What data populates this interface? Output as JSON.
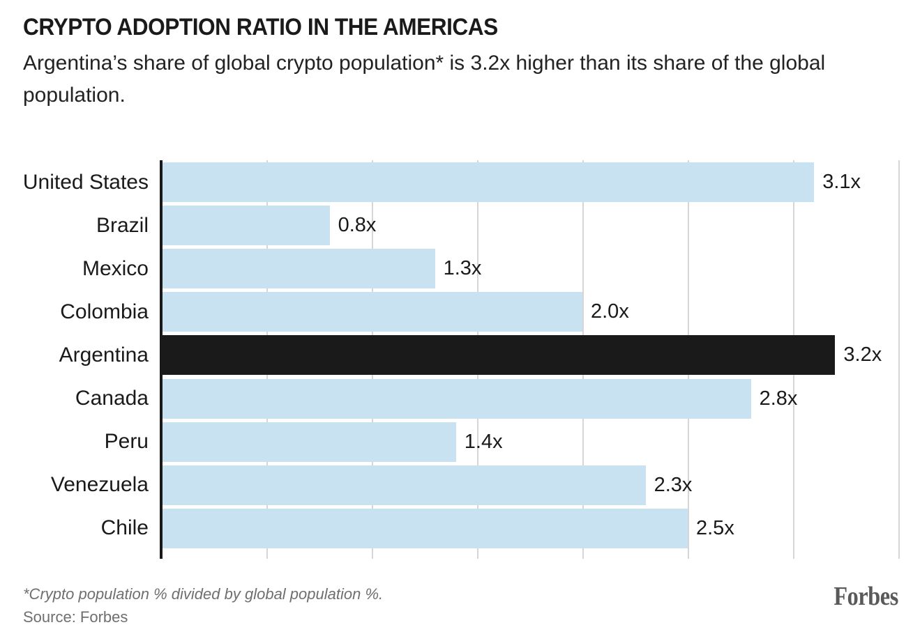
{
  "header": {
    "title": "CRYPTO ADOPTION RATIO IN THE AMERICAS",
    "subtitle": "Argentina’s share of global crypto population* is 3.2x higher than its share of the global population."
  },
  "chart_data": {
    "type": "bar",
    "orientation": "horizontal",
    "title": "CRYPTO ADOPTION RATIO IN THE AMERICAS",
    "categories": [
      "United States",
      "Brazil",
      "Mexico",
      "Colombia",
      "Argentina",
      "Canada",
      "Peru",
      "Venezuela",
      "Chile"
    ],
    "values": [
      3.1,
      0.8,
      1.3,
      2.0,
      3.2,
      2.8,
      1.4,
      2.3,
      2.5
    ],
    "value_labels": [
      "3.1x",
      "0.8x",
      "1.3x",
      "2.0x",
      "3.2x",
      "2.8x",
      "1.4x",
      "2.3x",
      "2.5x"
    ],
    "highlight_category": "Argentina",
    "xlabel": "",
    "ylabel": "",
    "xlim": [
      0,
      3.5
    ],
    "grid_step": 0.5,
    "grid": true,
    "legend": false,
    "colors": {
      "bar": "#c9e2f1",
      "highlight": "#1a1a1a",
      "axis": "#1a1a1a",
      "gridline": "#d6d6d6"
    }
  },
  "footer": {
    "footnote": "*Crypto population % divided by global population %.",
    "source": "Source: Forbes",
    "brand": "Forbes"
  }
}
